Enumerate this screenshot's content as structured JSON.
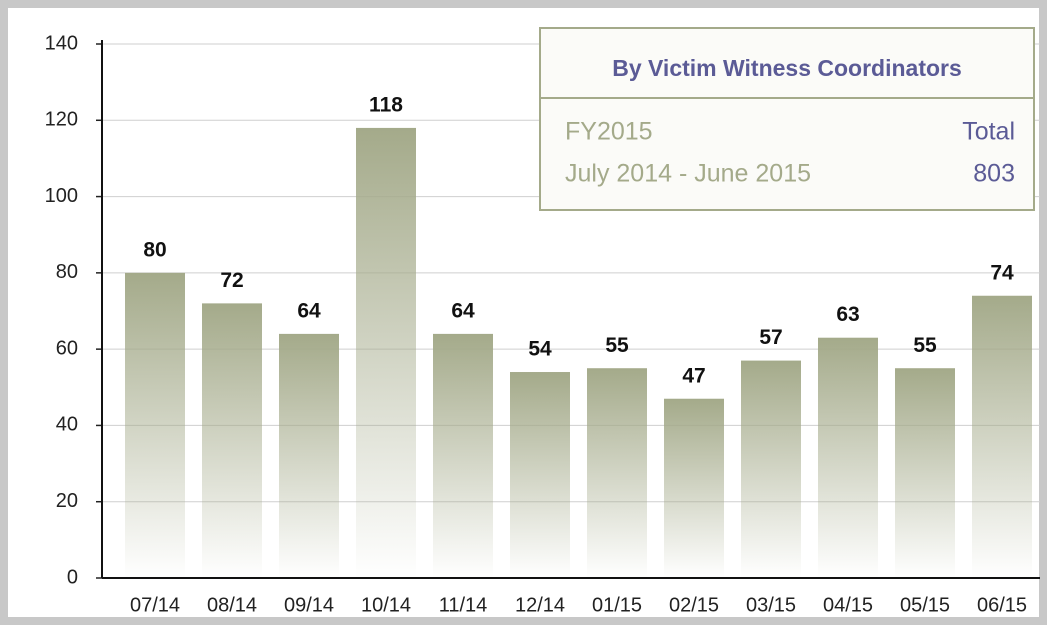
{
  "chart_data": {
    "type": "bar",
    "categories": [
      "07/14",
      "08/14",
      "09/14",
      "10/14",
      "11/14",
      "12/14",
      "01/15",
      "02/15",
      "03/15",
      "04/15",
      "05/15",
      "06/15"
    ],
    "values": [
      80,
      72,
      64,
      118,
      64,
      54,
      55,
      47,
      57,
      63,
      55,
      74
    ],
    "color": "#a4aa8a",
    "ylim": [
      0,
      140
    ],
    "yticks": [
      0,
      20,
      40,
      60,
      80,
      100,
      120,
      140
    ],
    "grid": true,
    "info_box": {
      "title": "By Victim Witness Coordinators",
      "rows": [
        [
          "FY2015",
          "Total"
        ],
        [
          "July 2014 - June 2015",
          "803"
        ]
      ]
    }
  }
}
